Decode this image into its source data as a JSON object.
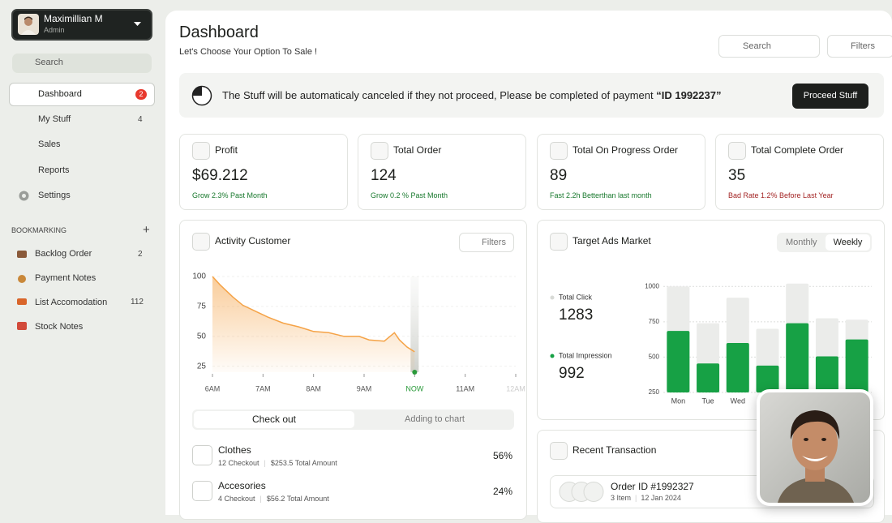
{
  "user": {
    "name": "Maximillian M",
    "role": "Admin"
  },
  "sidebar": {
    "search": "Search",
    "nav": [
      {
        "label": "Dashboard",
        "badge": 2
      },
      {
        "label": "My Stuff",
        "badge": 4
      },
      {
        "label": "Sales"
      },
      {
        "label": "Reports"
      },
      {
        "label": "Settings"
      }
    ],
    "section": "BOOKMARKING",
    "bookmarks": [
      {
        "label": "Backlog Order",
        "count": 2
      },
      {
        "label": "Payment Notes"
      },
      {
        "label": "List Accomodation",
        "count": 112
      },
      {
        "label": "Stock Notes"
      }
    ]
  },
  "header": {
    "title": "Dashboard",
    "subtitle": "Let's Choose Your Option To Sale !",
    "search": "Search",
    "filters": "Filters"
  },
  "alert": {
    "text": "The Stuff will be automaticaly canceled if they not proceed, Please be completed of payment",
    "id": "“ID 1992237”",
    "button": "Proceed Stuff"
  },
  "stats": [
    {
      "label": "Profit",
      "value": "$69.212",
      "note": "Grow 2.3% Past Month"
    },
    {
      "label": "Total Order",
      "value": "124",
      "note": "Grow 0.2 % Past Month"
    },
    {
      "label": "Total On Progress Order",
      "value": "89",
      "note": "Fast 2.2h Betterthan last month"
    },
    {
      "label": "Total Complete Order",
      "value": "35",
      "note": "Bad Rate 1.2% Before Last Year"
    }
  ],
  "activity": {
    "filters": "Filters",
    "tabs": [
      "Check out",
      "Adding to chart"
    ],
    "items": [
      {
        "name": "Clothes",
        "checkout": "12 Checkout",
        "amount": "$253.5 Total Amount",
        "share": "56%"
      },
      {
        "name": "Accesories",
        "checkout": "4 Checkout",
        "amount": "$56.2 Total Amount",
        "share": "24%"
      }
    ]
  },
  "ads_tabs": [
    "Monthly",
    "Weekly"
  ],
  "recent": {
    "title": "Recent Transaction",
    "order": "Order ID #1992327",
    "items": "3 Item",
    "date": "12 Jan 2024"
  },
  "chart_data": [
    {
      "type": "area",
      "title": "Activity Customer",
      "color": "#f5a347",
      "x": [
        6.0,
        6.15,
        6.4,
        6.6,
        6.9,
        7.1,
        7.4,
        7.7,
        8.0,
        8.3,
        8.6,
        8.9,
        9.1,
        9.4,
        9.6,
        9.7,
        9.85,
        10.0
      ],
      "values": [
        100,
        93,
        83,
        76,
        70,
        66,
        61,
        58,
        54,
        53,
        50,
        50,
        47,
        46,
        53,
        47,
        41,
        37
      ],
      "xlim": [
        6,
        12
      ],
      "xticks": [
        {
          "value": 6,
          "label": "6AM"
        },
        {
          "value": 7,
          "label": "7AM"
        },
        {
          "value": 8,
          "label": "8AM"
        },
        {
          "value": 9,
          "label": "9AM"
        },
        {
          "value": 10,
          "label": "NOW"
        },
        {
          "value": 11,
          "label": "11AM"
        },
        {
          "value": 12,
          "label": "12AM"
        }
      ],
      "ylim": [
        20,
        100
      ],
      "yticks": [
        100,
        75,
        50,
        25
      ]
    },
    {
      "type": "bar",
      "title": "Target Ads Market",
      "categories": [
        "Mon",
        "Tue",
        "Wed",
        null,
        null,
        null,
        null
      ],
      "series": [
        {
          "name": "Total Click",
          "total": 1283,
          "color": "#ebecea",
          "values": [
            1000,
            740,
            920,
            700,
            1020,
            775,
            765
          ]
        },
        {
          "name": "Total Impression",
          "total": 992,
          "color": "#17a145",
          "values": [
            685,
            455,
            600,
            440,
            740,
            505,
            625
          ]
        }
      ],
      "ylim": [
        250,
        1030
      ],
      "yticks": [
        1000,
        750,
        500,
        250
      ],
      "grid": true
    }
  ]
}
